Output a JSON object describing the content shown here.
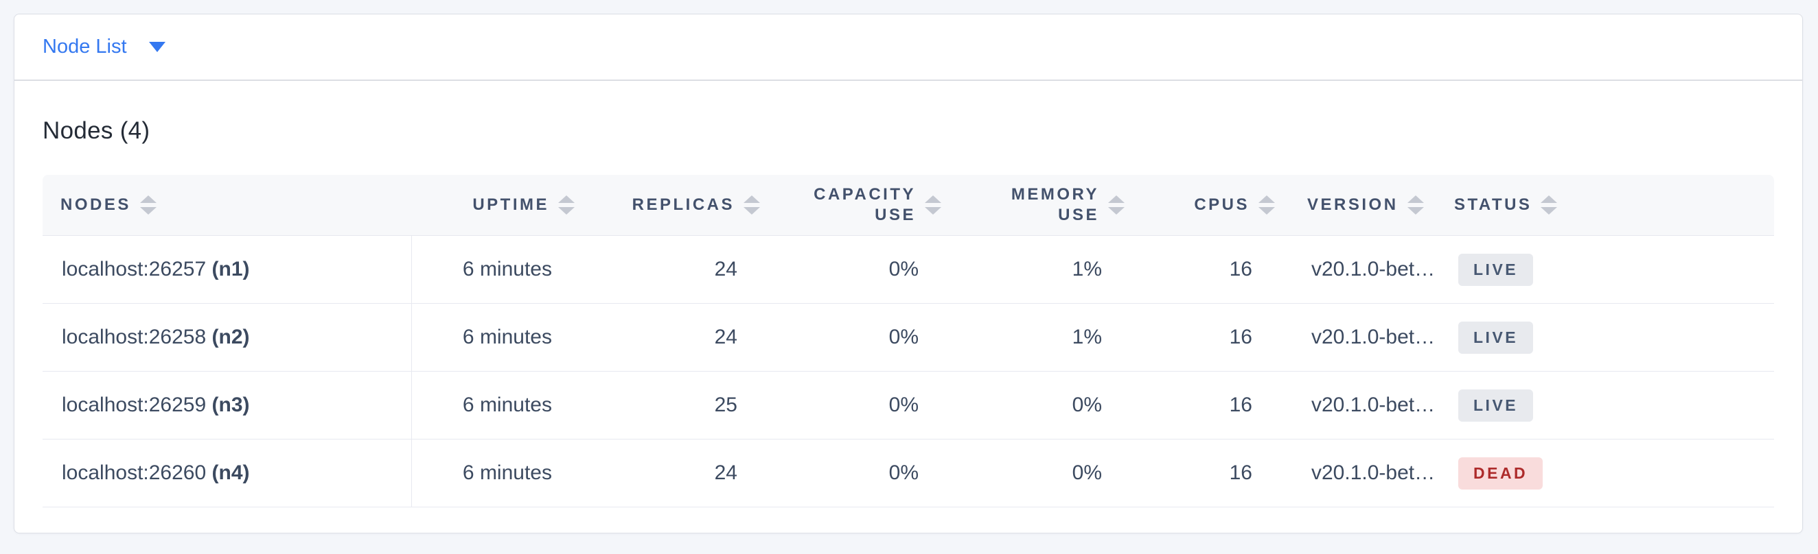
{
  "view_switcher": {
    "label": "Node List"
  },
  "section": {
    "title": "Nodes (4)"
  },
  "table": {
    "columns": [
      {
        "key": "node",
        "label": "NODES",
        "align": "left"
      },
      {
        "key": "uptime",
        "label": "UPTIME",
        "align": "right"
      },
      {
        "key": "replicas",
        "label": "REPLICAS",
        "align": "right"
      },
      {
        "key": "capacity_use",
        "label": "CAPACITY\nUSE",
        "align": "right"
      },
      {
        "key": "memory_use",
        "label": "MEMORY USE",
        "align": "right"
      },
      {
        "key": "cpus",
        "label": "CPUS",
        "align": "right"
      },
      {
        "key": "version",
        "label": "VERSION",
        "align": "left"
      },
      {
        "key": "status",
        "label": "STATUS",
        "align": "left"
      }
    ],
    "rows": [
      {
        "node": "localhost:26257",
        "node_id": "(n1)",
        "uptime": "6 minutes",
        "replicas": "24",
        "capacity_use": "0%",
        "memory_use": "1%",
        "cpus": "16",
        "version": "v20.1.0-bet…",
        "status": "LIVE"
      },
      {
        "node": "localhost:26258",
        "node_id": "(n2)",
        "uptime": "6 minutes",
        "replicas": "24",
        "capacity_use": "0%",
        "memory_use": "1%",
        "cpus": "16",
        "version": "v20.1.0-bet…",
        "status": "LIVE"
      },
      {
        "node": "localhost:26259",
        "node_id": "(n3)",
        "uptime": "6 minutes",
        "replicas": "25",
        "capacity_use": "0%",
        "memory_use": "0%",
        "cpus": "16",
        "version": "v20.1.0-bet…",
        "status": "LIVE"
      },
      {
        "node": "localhost:26260",
        "node_id": "(n4)",
        "uptime": "6 minutes",
        "replicas": "24",
        "capacity_use": "0%",
        "memory_use": "0%",
        "cpus": "16",
        "version": "v20.1.0-bet…",
        "status": "DEAD"
      }
    ]
  },
  "colors": {
    "accent_blue": "#3478f0",
    "live_badge_bg": "#e8eaee",
    "live_badge_text": "#475872",
    "dead_badge_bg": "#f9dcdc",
    "dead_badge_text": "#ad2b2b",
    "header_text": "#43516c",
    "page_bg": "#f4f6fa"
  }
}
